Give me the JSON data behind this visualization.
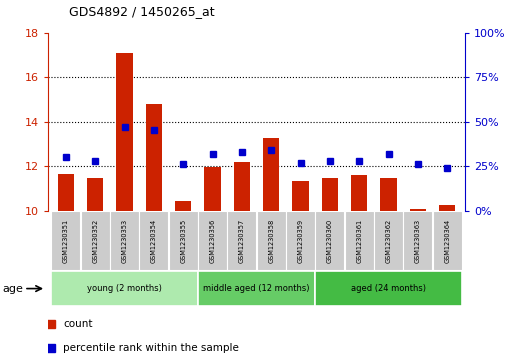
{
  "title": "GDS4892 / 1450265_at",
  "samples": [
    "GSM1230351",
    "GSM1230352",
    "GSM1230353",
    "GSM1230354",
    "GSM1230355",
    "GSM1230356",
    "GSM1230357",
    "GSM1230358",
    "GSM1230359",
    "GSM1230360",
    "GSM1230361",
    "GSM1230362",
    "GSM1230363",
    "GSM1230364"
  ],
  "count_values": [
    11.65,
    11.45,
    17.1,
    14.8,
    10.45,
    11.95,
    12.2,
    13.25,
    11.35,
    11.45,
    11.6,
    11.45,
    10.05,
    10.25
  ],
  "percentile_values": [
    30,
    28,
    47,
    45,
    26,
    32,
    33,
    34,
    27,
    28,
    28,
    32,
    26,
    24
  ],
  "count_base": 10,
  "left_ylim": [
    10,
    18
  ],
  "right_ylim": [
    0,
    100
  ],
  "left_yticks": [
    10,
    12,
    14,
    16,
    18
  ],
  "right_yticks": [
    0,
    25,
    50,
    75,
    100
  ],
  "right_yticklabels": [
    "0%",
    "25%",
    "50%",
    "75%",
    "100%"
  ],
  "groups": [
    {
      "label": "young (2 months)",
      "indices": [
        0,
        1,
        2,
        3,
        4
      ]
    },
    {
      "label": "middle aged (12 months)",
      "indices": [
        5,
        6,
        7,
        8
      ]
    },
    {
      "label": "aged (24 months)",
      "indices": [
        9,
        10,
        11,
        12,
        13
      ]
    }
  ],
  "group_colors": [
    "#aeeaae",
    "#66cc66",
    "#44bb44"
  ],
  "bar_color": "#cc2200",
  "dot_color": "#0000cc",
  "tick_bg_color": "#cccccc",
  "age_label": "age",
  "legend_count": "count",
  "legend_pct": "percentile rank within the sample",
  "grid_color": "black",
  "left_axis_color": "#cc2200",
  "right_axis_color": "#0000cc",
  "grid_lines": [
    12,
    14,
    16
  ]
}
